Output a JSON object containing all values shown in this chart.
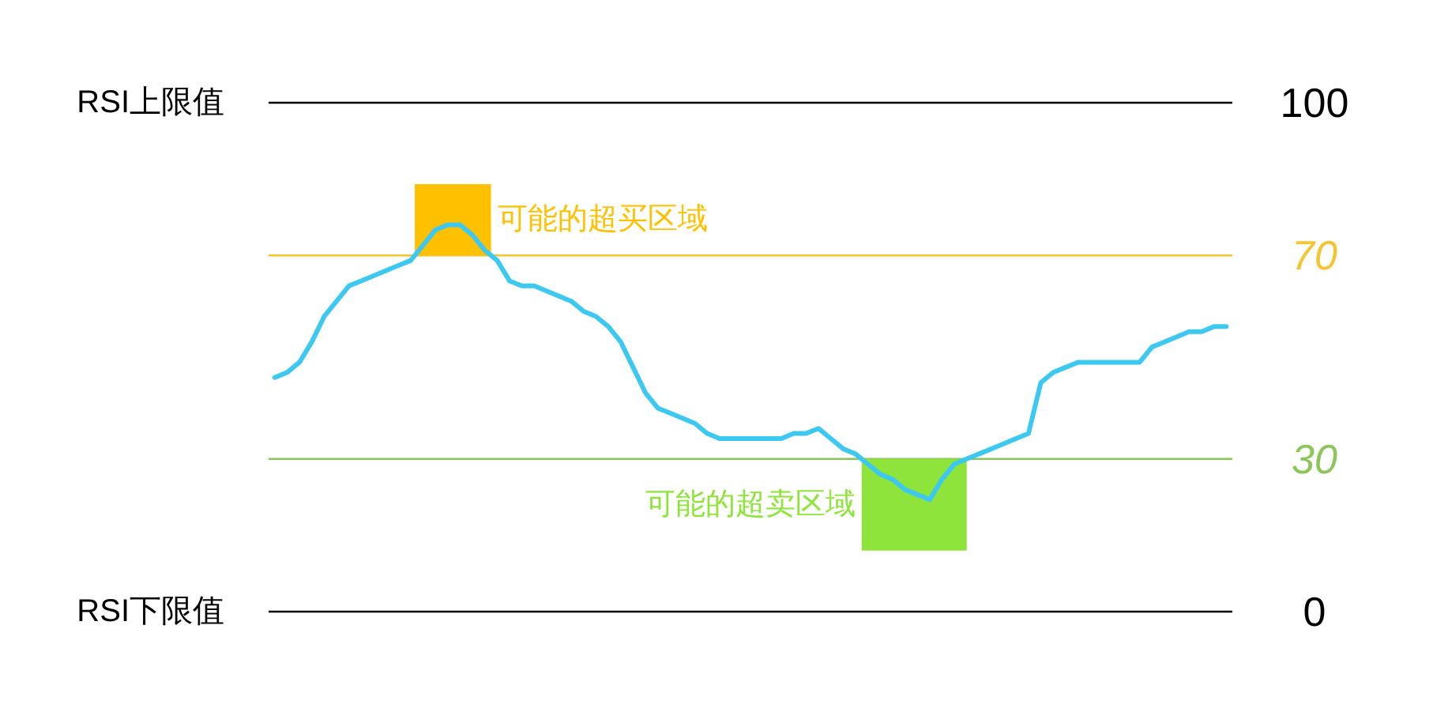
{
  "chart_data": {
    "type": "line",
    "categories": [
      null,
      null,
      null,
      null,
      null,
      null,
      null,
      null,
      null,
      null,
      null,
      null,
      null,
      null,
      null,
      null,
      null,
      null,
      null,
      null,
      null,
      null,
      null,
      null,
      null,
      null,
      null,
      null,
      null,
      null,
      null,
      null,
      null,
      null,
      null,
      null,
      null,
      null,
      null,
      null,
      null,
      null,
      null,
      null,
      null,
      null,
      null,
      null,
      null,
      null,
      null,
      null,
      null,
      null,
      null,
      null,
      null,
      null,
      null,
      null,
      null,
      null,
      null,
      null,
      null,
      null,
      null,
      null,
      null,
      null,
      null,
      null,
      null,
      null,
      null,
      null,
      null,
      null
    ],
    "series": [
      {
        "color": "#3cc8f0",
        "values": [
          46,
          47,
          49,
          53,
          58,
          61,
          64,
          65,
          66,
          67,
          68,
          69,
          72,
          75,
          76,
          76,
          74,
          71,
          69,
          65,
          64,
          64,
          63,
          62,
          61,
          59,
          58,
          56,
          53,
          48,
          43,
          40,
          39,
          38,
          37,
          35,
          34,
          34,
          34,
          34,
          34,
          34,
          35,
          35,
          36,
          34,
          32,
          31,
          29,
          27,
          26,
          24,
          23,
          22,
          26,
          29,
          30,
          31,
          32,
          33,
          34,
          35,
          45,
          47,
          48,
          49,
          49,
          49,
          49,
          49,
          49,
          52,
          53,
          54,
          55,
          55,
          56,
          56
        ]
      }
    ],
    "ylim": [
      0,
      100
    ],
    "yticks": [
      0,
      30,
      70,
      100
    ],
    "tick_labels": "y",
    "ref_lines": [
      {
        "axis": "y",
        "value": 100,
        "label": "RSI上限值",
        "color": "#000000"
      },
      {
        "axis": "y",
        "value": 70,
        "color": "#f5c431"
      },
      {
        "axis": "y",
        "value": 30,
        "color": "#8cc65a"
      },
      {
        "axis": "y",
        "value": 0,
        "label": "RSI下限值",
        "color": "#000000"
      }
    ],
    "bands": [
      {
        "axis": "y",
        "from": 70,
        "to": 84,
        "label": "可能的超买区域",
        "color": "#ffc000"
      },
      {
        "axis": "y",
        "from": 12,
        "to": 30,
        "label": "可能的超卖区域",
        "color": "#8ee43a"
      }
    ]
  }
}
